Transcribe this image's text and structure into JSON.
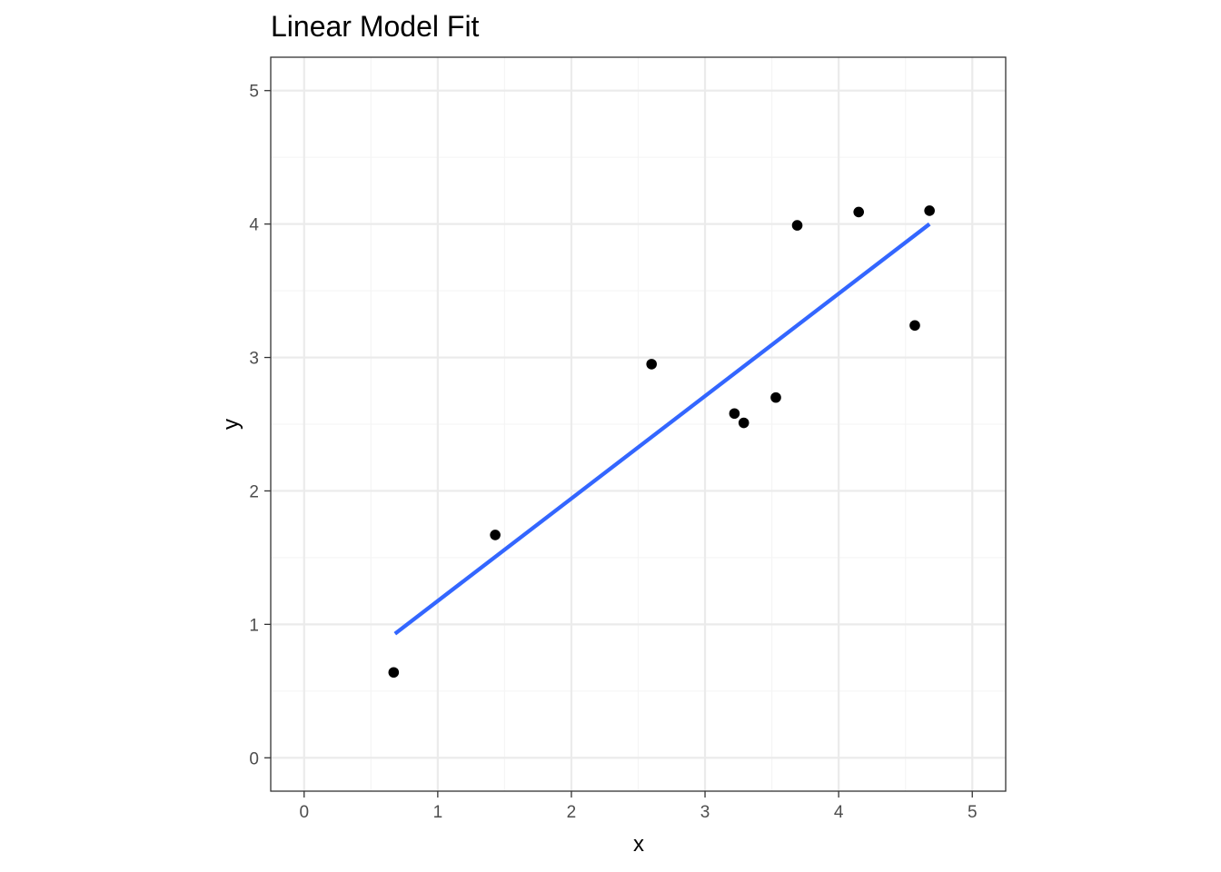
{
  "chart_data": {
    "type": "scatter",
    "title": "Linear Model Fit",
    "xlabel": "x",
    "ylabel": "y",
    "xlim": [
      -0.25,
      5.25
    ],
    "ylim": [
      -0.25,
      5.25
    ],
    "x_ticks": [
      0,
      1,
      2,
      3,
      4,
      5
    ],
    "y_ticks": [
      0,
      1,
      2,
      3,
      4,
      5
    ],
    "x_tick_labels": [
      "0",
      "1",
      "2",
      "3",
      "4",
      "5"
    ],
    "y_tick_labels": [
      "0",
      "1",
      "2",
      "3",
      "4",
      "5"
    ],
    "grid": true,
    "points": [
      {
        "x": 0.67,
        "y": 0.64
      },
      {
        "x": 1.43,
        "y": 1.67
      },
      {
        "x": 2.6,
        "y": 2.95
      },
      {
        "x": 3.22,
        "y": 2.58
      },
      {
        "x": 3.29,
        "y": 2.51
      },
      {
        "x": 3.53,
        "y": 2.7
      },
      {
        "x": 3.69,
        "y": 3.99
      },
      {
        "x": 4.15,
        "y": 4.09
      },
      {
        "x": 4.57,
        "y": 3.24
      },
      {
        "x": 4.68,
        "y": 4.1
      }
    ],
    "fit_line": {
      "x": [
        0.68,
        4.68
      ],
      "y": [
        0.93,
        4.0
      ]
    },
    "colors": {
      "points": "#000000",
      "fit_line": "#3366ff",
      "grid_major": "#ebebeb",
      "grid_minor": "#f5f5f5",
      "panel_border": "#333333"
    }
  }
}
